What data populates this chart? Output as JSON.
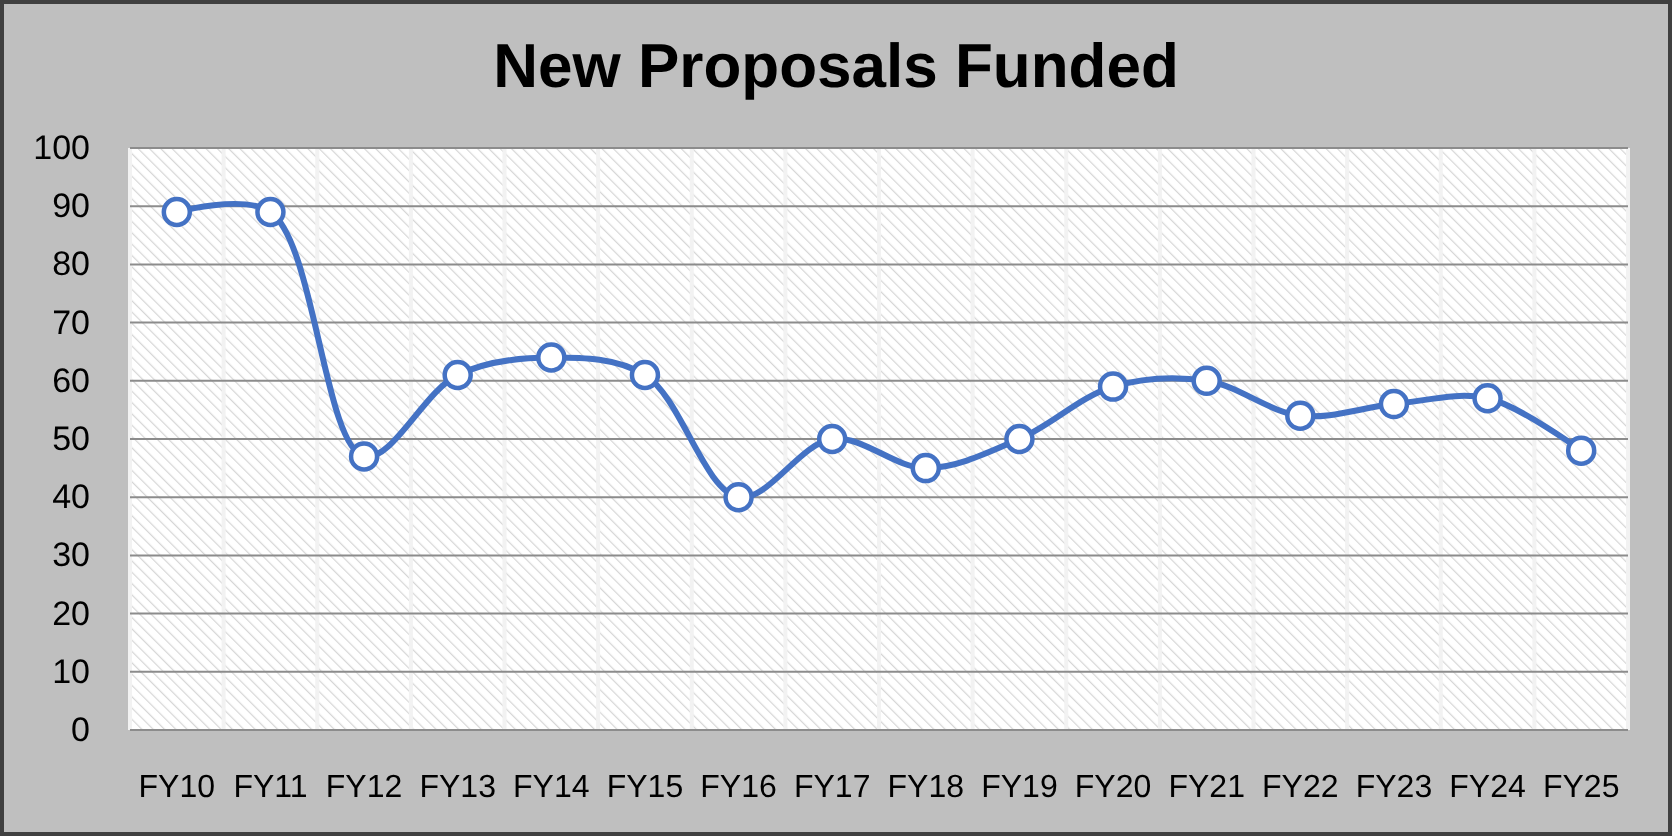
{
  "chart_data": {
    "type": "line",
    "title": "New Proposals Funded",
    "categories": [
      "FY10",
      "FY11",
      "FY12",
      "FY13",
      "FY14",
      "FY15",
      "FY16",
      "FY17",
      "FY18",
      "FY19",
      "FY20",
      "FY21",
      "FY22",
      "FY23",
      "FY24",
      "FY25"
    ],
    "series": [
      {
        "color": "#4472c4",
        "values": [
          89,
          89,
          47,
          61,
          64,
          61,
          40,
          50,
          45,
          50,
          59,
          60,
          54,
          56,
          57,
          48
        ]
      }
    ],
    "ylim": [
      0,
      100
    ],
    "yticks": [
      0,
      10,
      20,
      30,
      40,
      50,
      60,
      70,
      80,
      90,
      100
    ],
    "grid": true,
    "marker": "circle",
    "line_style": "solid"
  }
}
